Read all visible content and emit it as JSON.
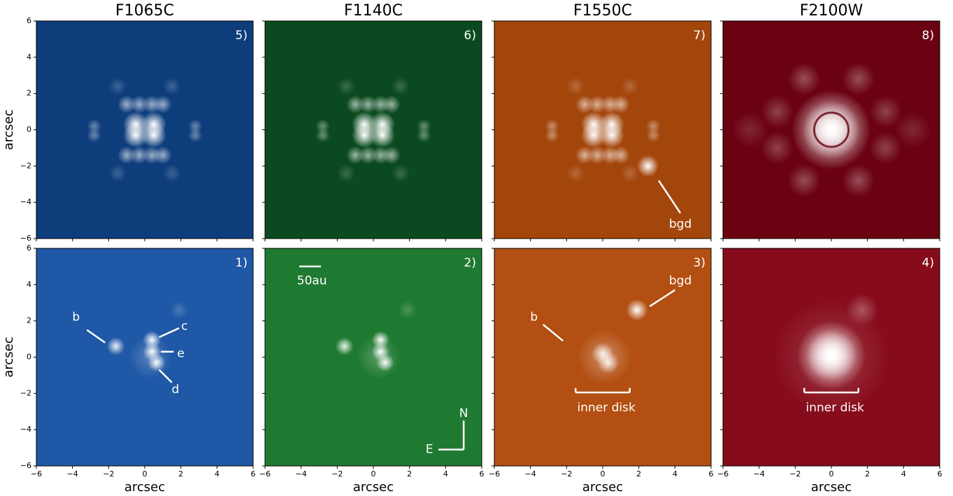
{
  "chart_data": [
    {
      "type": "image",
      "title": "F1065C",
      "panel_label": "5)",
      "ylabel": "arcsec",
      "color": "#0e3d7c",
      "xlim": [
        -6,
        6
      ],
      "ylim": [
        -6,
        6
      ],
      "xticks": [
        -6,
        -4,
        -2,
        0,
        2,
        4,
        6
      ],
      "yticks": [
        {
          "value": -6,
          "label": "−6"
        },
        {
          "value": -4,
          "label": "−4"
        },
        {
          "value": -2,
          "label": "−2"
        },
        0,
        2,
        4,
        6
      ],
      "annotations": []
    },
    {
      "type": "image",
      "title": "F1140C",
      "panel_label": "6)",
      "color": "#0b4a20",
      "xlim": [
        -6,
        6
      ],
      "ylim": [
        -6,
        6
      ],
      "xticks": [
        -6,
        -4,
        -2,
        0,
        2,
        4,
        6
      ],
      "yticks": [
        -6,
        -4,
        -2,
        0,
        2,
        4,
        6
      ],
      "annotations": []
    },
    {
      "type": "image",
      "title": "F1550C",
      "panel_label": "7)",
      "color": "#a3460c",
      "xlim": [
        -6,
        6
      ],
      "ylim": [
        -6,
        6
      ],
      "xticks": [
        -6,
        -4,
        -2,
        0,
        2,
        4,
        6
      ],
      "yticks": [
        -6,
        -4,
        -2,
        0,
        2,
        4,
        6
      ],
      "annotations": [
        "bgd"
      ]
    },
    {
      "type": "image",
      "title": "F2100W",
      "panel_label": "8)",
      "color": "#6b0212",
      "xlim": [
        -6,
        6
      ],
      "ylim": [
        -6,
        6
      ],
      "xticks": [
        -6,
        -4,
        -2,
        0,
        2,
        4,
        6
      ],
      "yticks": [
        -6,
        -4,
        -2,
        0,
        2,
        4,
        6
      ],
      "annotations": []
    },
    {
      "type": "image",
      "panel_label": "1)",
      "xlabel": "arcsec",
      "ylabel": "arcsec",
      "color": "#1f58a6",
      "xlim": [
        -6,
        6
      ],
      "ylim": [
        -6,
        6
      ],
      "xticks": [
        {
          "value": -6,
          "label": "−6"
        },
        {
          "value": -4,
          "label": "−4"
        },
        {
          "value": -2,
          "label": "−2"
        },
        0,
        2,
        4,
        6
      ],
      "yticks": [
        {
          "value": -6,
          "label": "−6"
        },
        {
          "value": -4,
          "label": "−4"
        },
        {
          "value": -2,
          "label": "−2"
        },
        0,
        2,
        4,
        6
      ],
      "annotations": [
        "b",
        "c",
        "e",
        "d"
      ]
    },
    {
      "type": "image",
      "panel_label": "2)",
      "xlabel": "arcsec",
      "color": "#1f7a31",
      "xlim": [
        -6,
        6
      ],
      "ylim": [
        -6,
        6
      ],
      "xticks": [
        {
          "value": -6,
          "label": "−6"
        },
        {
          "value": -4,
          "label": "−4"
        },
        {
          "value": -2,
          "label": "−2"
        },
        0,
        2,
        4,
        6
      ],
      "yticks": [
        -6,
        -4,
        -2,
        0,
        2,
        4,
        6
      ],
      "annotations": [
        "50au",
        "N",
        "E"
      ]
    },
    {
      "type": "image",
      "panel_label": "3)",
      "xlabel": "arcsec",
      "color": "#b34f12",
      "xlim": [
        -6,
        6
      ],
      "ylim": [
        -6,
        6
      ],
      "xticks": [
        {
          "value": -6,
          "label": "−6"
        },
        {
          "value": -4,
          "label": "−4"
        },
        {
          "value": -2,
          "label": "−2"
        },
        0,
        2,
        4,
        6
      ],
      "yticks": [
        -6,
        -4,
        -2,
        0,
        2,
        4,
        6
      ],
      "annotations": [
        "bgd",
        "b",
        "inner disk"
      ]
    },
    {
      "type": "image",
      "panel_label": "4)",
      "xlabel": "arcsec",
      "color": "#870c1b",
      "xlim": [
        -6,
        6
      ],
      "ylim": [
        -6,
        6
      ],
      "xticks": [
        {
          "value": -6,
          "label": "−6"
        },
        {
          "value": -4,
          "label": "−4"
        },
        {
          "value": -2,
          "label": "−2"
        },
        0,
        2,
        4,
        6
      ],
      "yticks": [
        -6,
        -4,
        -2,
        0,
        2,
        4,
        6
      ],
      "annotations": [
        "inner disk"
      ]
    }
  ]
}
